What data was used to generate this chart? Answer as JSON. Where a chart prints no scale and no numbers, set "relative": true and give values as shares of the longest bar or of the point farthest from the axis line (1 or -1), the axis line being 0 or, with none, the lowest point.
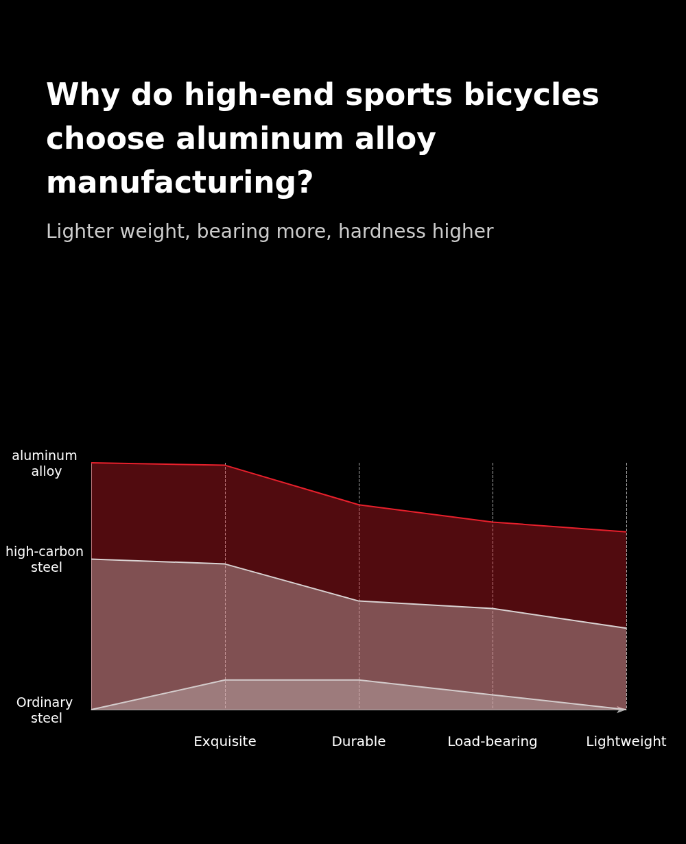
{
  "chart_data": {
    "type": "area",
    "title": "Why do high-end sports bicycles\nchoose aluminum alloy\nmanufacturing?",
    "subtitle": "Lighter weight, bearing more, hardness higher",
    "categories": [
      null,
      "Exquisite",
      "Durable",
      "Load-bearing",
      "Lightweight"
    ],
    "relative": true,
    "grid": "x",
    "legend": false,
    "marker": "none",
    "series": [
      {
        "name": "aluminum alloy",
        "color": "#e8202c",
        "values": [
          1.0,
          0.99,
          0.83,
          0.76,
          0.72
        ]
      },
      {
        "name": "high-carbon steel",
        "color": "#d9d2d2",
        "values": [
          0.61,
          0.59,
          0.44,
          0.41,
          0.33
        ]
      },
      {
        "name": "Ordinary steel",
        "color": "#d4cccc",
        "values": [
          0,
          0.12,
          0.12,
          0.06,
          0
        ]
      }
    ]
  }
}
